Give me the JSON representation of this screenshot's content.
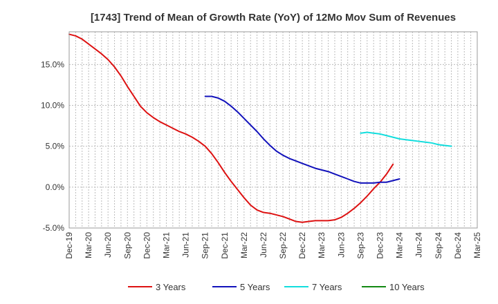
{
  "chart_data": {
    "type": "line",
    "title": "[1743]  Trend of Mean of Growth Rate (YoY) of 12Mo Mov Sum of Revenues",
    "xlabel": "",
    "ylabel": "",
    "ylim": [
      -5.0,
      19.0
    ],
    "yticks": [
      -5.0,
      0.0,
      5.0,
      10.0,
      15.0
    ],
    "ytick_labels": [
      "-5.0%",
      "0.0%",
      "5.0%",
      "10.0%",
      "15.0%"
    ],
    "x_start": "Dec-19",
    "x_end_month_index": 63,
    "xticks": [
      "Dec-19",
      "Mar-20",
      "Jun-20",
      "Sep-20",
      "Dec-20",
      "Mar-21",
      "Jun-21",
      "Sep-21",
      "Dec-21",
      "Mar-22",
      "Jun-22",
      "Sep-22",
      "Dec-22",
      "Mar-23",
      "Jun-23",
      "Sep-23",
      "Dec-23",
      "Mar-24",
      "Jun-24",
      "Sep-24",
      "Dec-24",
      "Mar-25"
    ],
    "grid": true,
    "legend_position": "bottom",
    "series": [
      {
        "name": "3 Years",
        "color": "#dd1111",
        "start_index": 0,
        "values": [
          18.7,
          18.5,
          18.1,
          17.5,
          16.9,
          16.3,
          15.6,
          14.7,
          13.6,
          12.3,
          11.1,
          9.9,
          9.1,
          8.5,
          8.0,
          7.6,
          7.2,
          6.8,
          6.5,
          6.1,
          5.6,
          5.0,
          4.1,
          3.0,
          1.8,
          0.7,
          -0.3,
          -1.3,
          -2.2,
          -2.8,
          -3.1,
          -3.2,
          -3.4,
          -3.6,
          -3.9,
          -4.2,
          -4.3,
          -4.2,
          -4.1,
          -4.1,
          -4.1,
          -4.0,
          -3.7,
          -3.2,
          -2.6,
          -1.9,
          -1.1,
          -0.2,
          0.6,
          1.6,
          2.8
        ]
      },
      {
        "name": "5 Years",
        "color": "#1111bb",
        "start_index": 21,
        "values": [
          11.1,
          11.1,
          10.9,
          10.5,
          9.9,
          9.2,
          8.4,
          7.6,
          6.8,
          5.9,
          5.1,
          4.4,
          3.9,
          3.5,
          3.2,
          2.9,
          2.6,
          2.3,
          2.1,
          1.9,
          1.6,
          1.3,
          1.0,
          0.7,
          0.5,
          0.5,
          0.5,
          0.6,
          0.6,
          0.8,
          1.0
        ]
      },
      {
        "name": "7 Years",
        "color": "#11dddd",
        "start_index": 45,
        "values": [
          6.6,
          6.7,
          6.6,
          6.5,
          6.3,
          6.1,
          5.9,
          5.8,
          5.7,
          5.6,
          5.5,
          5.4,
          5.2,
          5.1,
          5.0
        ]
      },
      {
        "name": "10 Years",
        "color": "#118811",
        "start_index": 0,
        "values": []
      }
    ]
  }
}
